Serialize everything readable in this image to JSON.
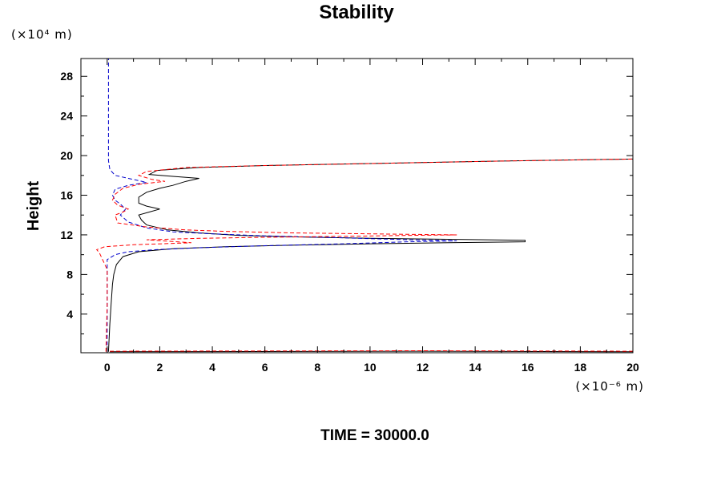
{
  "chart_data": {
    "type": "line",
    "title": "Stability",
    "ylabel": "Height",
    "xlabel": "",
    "x_unit_label": "(×10⁻⁶ m)",
    "y_unit_label": "(×10⁴ m)",
    "footer": "TIME = 30000.0",
    "xlim": [
      -1,
      20
    ],
    "ylim": [
      0.1,
      29.8
    ],
    "xticks": [
      0,
      2,
      4,
      6,
      8,
      10,
      12,
      14,
      16,
      18,
      20
    ],
    "yticks": [
      4,
      8,
      12,
      16,
      20,
      24,
      28
    ],
    "grid": false,
    "series": [
      {
        "color": "#000000",
        "dash": "solid",
        "points": [
          [
            0.05,
            0.2
          ],
          [
            0.1,
            3.0
          ],
          [
            0.15,
            5.0
          ],
          [
            0.2,
            7.0
          ],
          [
            0.25,
            8.0
          ],
          [
            0.35,
            9.0
          ],
          [
            0.6,
            9.8
          ],
          [
            1.2,
            10.3
          ],
          [
            2.5,
            10.6
          ],
          [
            4.5,
            10.8
          ],
          [
            7.0,
            10.95
          ],
          [
            10.0,
            11.1
          ],
          [
            13.0,
            11.2
          ],
          [
            15.9,
            11.3
          ],
          [
            15.9,
            11.45
          ],
          [
            13.0,
            11.55
          ],
          [
            10.0,
            11.65
          ],
          [
            7.0,
            11.8
          ],
          [
            5.0,
            11.95
          ],
          [
            3.5,
            12.2
          ],
          [
            2.3,
            12.5
          ],
          [
            1.5,
            13.0
          ],
          [
            1.3,
            13.5
          ],
          [
            1.2,
            14.0
          ],
          [
            1.6,
            14.3
          ],
          [
            2.0,
            14.6
          ],
          [
            1.5,
            14.9
          ],
          [
            1.2,
            15.2
          ],
          [
            1.2,
            15.8
          ],
          [
            1.5,
            16.3
          ],
          [
            2.0,
            16.7
          ],
          [
            2.5,
            17.0
          ],
          [
            3.0,
            17.4
          ],
          [
            3.5,
            17.7
          ],
          [
            2.5,
            17.9
          ],
          [
            1.6,
            18.1
          ],
          [
            1.9,
            18.5
          ],
          [
            3.5,
            18.8
          ],
          [
            6.0,
            19.0
          ],
          [
            10.0,
            19.2
          ],
          [
            15.0,
            19.45
          ],
          [
            20.0,
            19.65
          ]
        ]
      },
      {
        "color": "#0000cc",
        "dash": "dashed",
        "points": [
          [
            0.0,
            0.2
          ],
          [
            0.0,
            9.5
          ],
          [
            0.3,
            10.0
          ],
          [
            0.8,
            10.3
          ],
          [
            1.8,
            10.5
          ],
          [
            3.5,
            10.7
          ],
          [
            6.0,
            10.9
          ],
          [
            9.0,
            11.1
          ],
          [
            11.5,
            11.3
          ],
          [
            13.3,
            11.4
          ],
          [
            11.5,
            11.5
          ],
          [
            9.0,
            11.7
          ],
          [
            6.0,
            11.9
          ],
          [
            4.0,
            12.1
          ],
          [
            2.5,
            12.3
          ],
          [
            1.5,
            12.7
          ],
          [
            0.8,
            13.3
          ],
          [
            0.5,
            14.0
          ],
          [
            0.7,
            14.6
          ],
          [
            0.5,
            15.1
          ],
          [
            0.3,
            15.5
          ],
          [
            0.2,
            16.0
          ],
          [
            0.3,
            16.6
          ],
          [
            0.8,
            17.0
          ],
          [
            1.5,
            17.3
          ],
          [
            0.8,
            17.7
          ],
          [
            0.3,
            18.0
          ],
          [
            0.1,
            18.6
          ],
          [
            0.05,
            19.5
          ],
          [
            0.05,
            24.0
          ],
          [
            0.05,
            29.8
          ]
        ]
      },
      {
        "color": "#ff0000",
        "dash": "dashed",
        "points": [
          [
            -0.05,
            0.2
          ],
          [
            0.0,
            5.0
          ],
          [
            0.0,
            8.5
          ],
          [
            -0.3,
            10.2
          ],
          [
            -0.4,
            10.5
          ],
          [
            -0.1,
            10.8
          ],
          [
            1.0,
            11.0
          ],
          [
            3.2,
            11.2
          ],
          [
            1.5,
            11.5
          ],
          [
            3.5,
            11.65
          ],
          [
            6.0,
            11.75
          ],
          [
            9.0,
            11.85
          ],
          [
            11.5,
            11.95
          ],
          [
            13.3,
            12.0
          ],
          [
            10.0,
            12.1
          ],
          [
            7.0,
            12.2
          ],
          [
            4.5,
            12.35
          ],
          [
            3.0,
            12.5
          ],
          [
            1.5,
            12.8
          ],
          [
            0.4,
            13.2
          ],
          [
            0.3,
            14.0
          ],
          [
            0.6,
            14.3
          ],
          [
            0.8,
            14.6
          ],
          [
            0.4,
            15.0
          ],
          [
            0.2,
            15.5
          ],
          [
            0.3,
            16.1
          ],
          [
            0.6,
            16.7
          ],
          [
            1.2,
            17.1
          ],
          [
            2.2,
            17.4
          ],
          [
            1.7,
            17.6
          ],
          [
            1.2,
            18.0
          ],
          [
            1.5,
            18.4
          ],
          [
            3.0,
            18.8
          ],
          [
            6.0,
            19.0
          ],
          [
            10.0,
            19.2
          ],
          [
            15.0,
            19.45
          ],
          [
            20.0,
            19.65
          ]
        ]
      },
      {
        "color": "#000000",
        "dash": "solid",
        "points": [
          [
            0.1,
            0.2
          ],
          [
            12.0,
            0.25
          ],
          [
            20.0,
            0.2
          ]
        ]
      },
      {
        "color": "#ff0000",
        "dash": "dashed",
        "points": [
          [
            0.1,
            0.25
          ],
          [
            12.0,
            0.3
          ],
          [
            20.0,
            0.25
          ]
        ]
      }
    ]
  }
}
